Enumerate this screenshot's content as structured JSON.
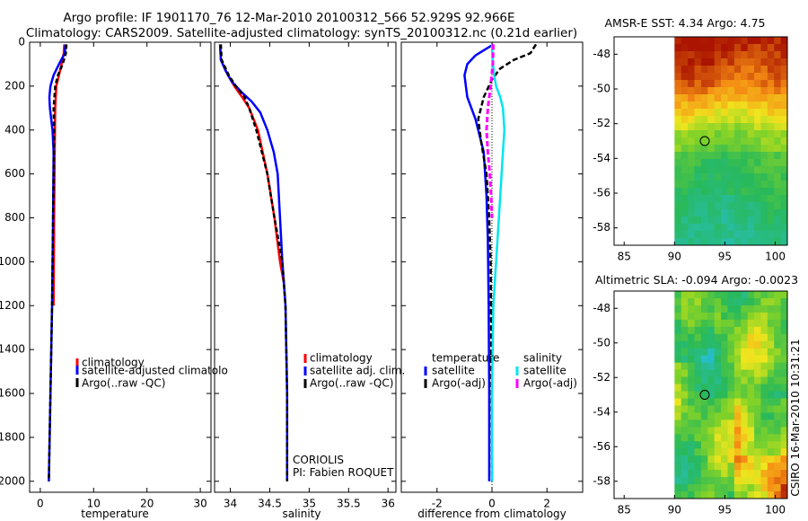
{
  "header": {
    "line1": "Argo profile: IF 1901170_76 12-Mar-2010 20100312_566 52.929S 92.966E",
    "line2": "Climatology: CARS2009. Satellite-adjusted climatology: synTS_20100312.nc (0.21d earlier)"
  },
  "colors": {
    "climatology": "#ff0000",
    "satellite": "#0000ff",
    "argo": "#000000",
    "sat_salinity": "#00e5ee",
    "argo_salinity": "#ff00ff"
  },
  "chart_data": [
    {
      "type": "line",
      "panel": "temperature",
      "xlabel": "temperature",
      "xlim": [
        -2,
        32
      ],
      "xticks": [
        0,
        10,
        20,
        30
      ],
      "ylim": [
        2050,
        0
      ],
      "yticks": [
        0,
        200,
        400,
        600,
        800,
        1000,
        1200,
        1400,
        1600,
        1800,
        2000
      ],
      "series": [
        {
          "name": "climatology",
          "style": "solid",
          "points": [
            [
              4.5,
              10
            ],
            [
              4.4,
              50
            ],
            [
              4.0,
              100
            ],
            [
              3.5,
              150
            ],
            [
              3.0,
              200
            ],
            [
              2.8,
              300
            ],
            [
              2.7,
              500
            ],
            [
              2.6,
              800
            ],
            [
              2.5,
              1200
            ]
          ]
        },
        {
          "name": "satellite-adjusted climatology",
          "style": "solid",
          "points": [
            [
              4.7,
              10
            ],
            [
              4.6,
              50
            ],
            [
              3.5,
              100
            ],
            [
              2.5,
              150
            ],
            [
              1.9,
              200
            ],
            [
              1.7,
              250
            ],
            [
              1.8,
              300
            ],
            [
              2.3,
              400
            ],
            [
              2.5,
              500
            ],
            [
              2.4,
              800
            ],
            [
              2.2,
              1200
            ],
            [
              1.9,
              1600
            ],
            [
              1.6,
              2000
            ]
          ]
        },
        {
          "name": "Argo(..raw -QC)",
          "style": "dashed",
          "points": [
            [
              4.9,
              10
            ],
            [
              4.8,
              50
            ],
            [
              4.2,
              100
            ],
            [
              3.3,
              150
            ],
            [
              2.8,
              200
            ],
            [
              2.5,
              300
            ],
            [
              2.6,
              400
            ],
            [
              2.5,
              600
            ],
            [
              2.4,
              800
            ],
            [
              2.2,
              1200
            ],
            [
              1.9,
              1600
            ],
            [
              1.6,
              2000
            ]
          ]
        }
      ],
      "legend": [
        "climatology",
        "satellite-adjusted climatolo",
        "Argo(..raw -QC)"
      ]
    },
    {
      "type": "line",
      "panel": "salinity",
      "xlabel": "salinity",
      "xlim": [
        33.8,
        36.1
      ],
      "xticks": [
        34,
        34.5,
        35,
        35.5,
        36
      ],
      "xticklabels": [
        "34",
        "34.5",
        "35",
        "35.5",
        "36"
      ],
      "ylim": [
        2050,
        0
      ],
      "series": [
        {
          "name": "climatology",
          "style": "solid",
          "points": [
            [
              33.87,
              10
            ],
            [
              33.88,
              80
            ],
            [
              33.97,
              150
            ],
            [
              34.05,
              200
            ],
            [
              34.15,
              250
            ],
            [
              34.24,
              300
            ],
            [
              34.35,
              400
            ],
            [
              34.47,
              600
            ],
            [
              34.56,
              800
            ],
            [
              34.63,
              1000
            ],
            [
              34.68,
              1100
            ]
          ]
        },
        {
          "name": "satellite adj. clim.",
          "style": "solid",
          "points": [
            [
              33.87,
              10
            ],
            [
              33.88,
              80
            ],
            [
              33.94,
              130
            ],
            [
              34.02,
              180
            ],
            [
              34.15,
              230
            ],
            [
              34.27,
              270
            ],
            [
              34.38,
              320
            ],
            [
              34.47,
              400
            ],
            [
              34.55,
              500
            ],
            [
              34.6,
              600
            ],
            [
              34.63,
              800
            ],
            [
              34.66,
              1000
            ],
            [
              34.7,
              1200
            ],
            [
              34.72,
              1600
            ],
            [
              34.72,
              2000
            ]
          ]
        },
        {
          "name": "Argo(..raw -QC)",
          "style": "dashed",
          "points": [
            [
              33.88,
              10
            ],
            [
              33.89,
              80
            ],
            [
              33.98,
              150
            ],
            [
              34.07,
              200
            ],
            [
              34.18,
              250
            ],
            [
              34.24,
              300
            ],
            [
              34.33,
              400
            ],
            [
              34.47,
              600
            ],
            [
              34.56,
              800
            ],
            [
              34.61,
              900
            ],
            [
              34.66,
              1000
            ],
            [
              34.7,
              1200
            ],
            [
              34.72,
              1600
            ],
            [
              34.72,
              2000
            ]
          ]
        }
      ],
      "legend": [
        "climatology",
        "satellite adj. clim.",
        "Argo(..raw -QC)"
      ],
      "annotation": [
        "CORIOLIS",
        "PI: Fabien ROQUET"
      ]
    },
    {
      "type": "line",
      "panel": "difference",
      "xlabel": "difference from climatology",
      "xlim": [
        -3.3,
        3.3
      ],
      "xticks": [
        -2,
        0,
        2
      ],
      "xticklabels": [
        "-2",
        "0",
        "2"
      ],
      "ylim": [
        2050,
        0
      ],
      "series": [
        {
          "name": "temperature satellite",
          "style": "solid",
          "points": [
            [
              0.05,
              10
            ],
            [
              -0.6,
              60
            ],
            [
              -0.9,
              100
            ],
            [
              -1.0,
              150
            ],
            [
              -0.95,
              200
            ],
            [
              -0.9,
              250
            ],
            [
              -0.6,
              350
            ],
            [
              -0.3,
              500
            ],
            [
              -0.2,
              700
            ],
            [
              -0.15,
              900
            ],
            [
              -0.12,
              1200
            ],
            [
              -0.1,
              1600
            ],
            [
              -0.1,
              2000
            ]
          ]
        },
        {
          "name": "temperature Argo(-adj)",
          "style": "dashed",
          "points": [
            [
              1.6,
              10
            ],
            [
              1.4,
              50
            ],
            [
              0.8,
              80
            ],
            [
              0.3,
              120
            ],
            [
              0.0,
              170
            ],
            [
              -0.3,
              250
            ],
            [
              -0.5,
              350
            ],
            [
              -0.4,
              450
            ],
            [
              -0.2,
              600
            ],
            [
              -0.1,
              800
            ],
            [
              -0.05,
              1000
            ],
            [
              -0.02,
              1500
            ],
            [
              0.0,
              2000
            ]
          ]
        },
        {
          "name": "salinity satellite",
          "style": "solid",
          "points": [
            [
              0.0,
              10
            ],
            [
              0.02,
              80
            ],
            [
              0.08,
              150
            ],
            [
              0.15,
              200
            ],
            [
              0.3,
              250
            ],
            [
              0.4,
              300
            ],
            [
              0.45,
              400
            ],
            [
              0.4,
              500
            ],
            [
              0.35,
              600
            ],
            [
              0.25,
              800
            ],
            [
              0.15,
              1000
            ],
            [
              0.05,
              1200
            ],
            [
              0.0,
              1600
            ],
            [
              0.0,
              2000
            ]
          ]
        },
        {
          "name": "salinity Argo(-adj)",
          "style": "dashed",
          "points": [
            [
              0.05,
              10
            ],
            [
              0.03,
              100
            ],
            [
              -0.05,
              200
            ],
            [
              -0.15,
              300
            ],
            [
              -0.2,
              400
            ],
            [
              -0.15,
              500
            ],
            [
              -0.08,
              600
            ],
            [
              -0.03,
              700
            ],
            [
              0.0,
              800
            ]
          ]
        }
      ],
      "legend_headers": [
        "temperature",
        "salinity"
      ],
      "legend": [
        "satellite",
        "Argo(-adj)",
        "satellite",
        "Argo(-adj)"
      ]
    },
    {
      "type": "heatmap",
      "panel": "sst_map",
      "title": "AMSR-E SST: 4.34 Argo: 4.75",
      "xlim": [
        84,
        101.2
      ],
      "ylim": [
        -59,
        -47
      ],
      "xticks": [
        85,
        90,
        95,
        100
      ],
      "yticks": [
        -48,
        -50,
        -52,
        -54,
        -56,
        -58
      ],
      "marker": [
        93,
        -53
      ]
    },
    {
      "type": "heatmap",
      "panel": "sla_map",
      "title": "Altimetric SLA: -0.094 Argo: -0.0023",
      "xlim": [
        84,
        101.2
      ],
      "ylim": [
        -59,
        -47
      ],
      "xticks": [
        85,
        90,
        95,
        100
      ],
      "yticks": [
        -48,
        -50,
        -52,
        -54,
        -56,
        -58
      ],
      "marker": [
        93,
        -53
      ]
    }
  ],
  "footer": {
    "stamp": "CSIRO 16-Mar-2010 10:31:21"
  }
}
